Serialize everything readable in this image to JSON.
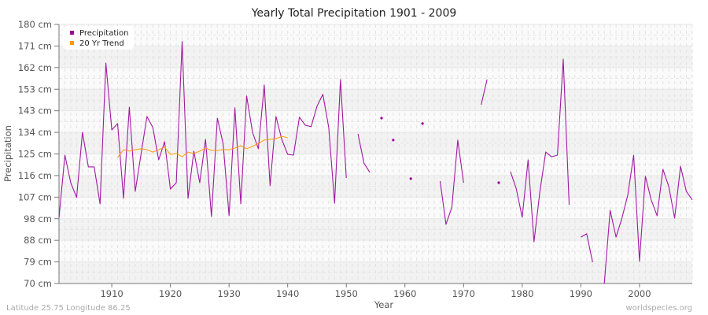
{
  "chart_data": {
    "type": "line",
    "title": "Yearly Total Precipitation 1901 - 2009",
    "xlabel": "Year",
    "ylabel": "Precipitation",
    "xlim": [
      1901,
      2009
    ],
    "ylim": [
      70,
      180
    ],
    "y_ticks": [
      "180 cm",
      "171 cm",
      "162 cm",
      "153 cm",
      "143 cm",
      "134 cm",
      "125 cm",
      "116 cm",
      "107 cm",
      "98 cm",
      "88 cm",
      "79 cm",
      "70 cm"
    ],
    "x_ticks": [
      "1910",
      "1920",
      "1930",
      "1940",
      "1950",
      "1960",
      "1970",
      "1980",
      "1990",
      "2000"
    ],
    "grid": true,
    "legend_position": "top-left",
    "series": [
      {
        "name": "Precipitation",
        "color": "#990099",
        "points": [
          [
            1901,
            98
          ],
          [
            1902,
            124.5
          ],
          [
            1903,
            112.8
          ],
          [
            1904,
            106.5
          ],
          [
            1905,
            134.2
          ],
          [
            1906,
            119.5
          ],
          [
            1907,
            119.5
          ],
          [
            1908,
            103.8
          ],
          [
            1909,
            163.6
          ],
          [
            1910,
            135.2
          ],
          [
            1911,
            137.9
          ],
          [
            1912,
            106.1
          ],
          [
            1913,
            144.9
          ],
          [
            1914,
            109.1
          ],
          [
            1915,
            125.2
          ],
          [
            1916,
            140.9
          ],
          [
            1917,
            136.2
          ],
          [
            1918,
            122.5
          ],
          [
            1919,
            130.2
          ],
          [
            1920,
            110.1
          ],
          [
            1921,
            112.8
          ],
          [
            1922,
            172.7
          ],
          [
            1923,
            106.1
          ],
          [
            1924,
            126.2
          ],
          [
            1925,
            112.8
          ],
          [
            1926,
            131.2
          ],
          [
            1927,
            98.4
          ],
          [
            1928,
            140.2
          ],
          [
            1929,
            129.2
          ],
          [
            1930,
            98.8
          ],
          [
            1931,
            144.6
          ],
          [
            1932,
            103.8
          ],
          [
            1933,
            149.6
          ],
          [
            1934,
            134.2
          ],
          [
            1935,
            127.2
          ],
          [
            1936,
            154.3
          ],
          [
            1937,
            111.5
          ],
          [
            1938,
            140.9
          ],
          [
            1939,
            131.2
          ],
          [
            1940,
            124.8
          ],
          [
            1941,
            124.5
          ],
          [
            1942,
            140.6
          ],
          [
            1943,
            137.2
          ],
          [
            1944,
            136.6
          ],
          [
            1945,
            145.3
          ],
          [
            1946,
            150.3
          ],
          [
            1947,
            136.2
          ],
          [
            1948,
            104.1
          ],
          [
            1949,
            156.6
          ],
          [
            1950,
            114.8
          ],
          [
            1951,
            null
          ],
          [
            1952,
            133.5
          ],
          [
            1953,
            121.2
          ],
          [
            1954,
            117.2
          ],
          [
            1955,
            null
          ],
          [
            1956,
            140.2
          ],
          [
            1957,
            null
          ],
          [
            1958,
            130.9
          ],
          [
            1959,
            null
          ],
          [
            1960,
            null
          ],
          [
            1961,
            114.5
          ],
          [
            1962,
            null
          ],
          [
            1963,
            137.9
          ],
          [
            1964,
            null
          ],
          [
            1965,
            null
          ],
          [
            1966,
            113.5
          ],
          [
            1967,
            95.1
          ],
          [
            1968,
            102.4
          ],
          [
            1969,
            130.9
          ],
          [
            1970,
            112.8
          ],
          [
            1971,
            null
          ],
          [
            1972,
            null
          ],
          [
            1973,
            145.9
          ],
          [
            1974,
            156.6
          ],
          [
            1975,
            null
          ],
          [
            1976,
            112.8
          ],
          [
            1977,
            null
          ],
          [
            1978,
            117.5
          ],
          [
            1979,
            110.1
          ],
          [
            1980,
            98.1
          ],
          [
            1981,
            122.5
          ],
          [
            1982,
            87.7
          ],
          [
            1983,
            108.8
          ],
          [
            1984,
            125.8
          ],
          [
            1985,
            123.8
          ],
          [
            1986,
            124.5
          ],
          [
            1987,
            165.3
          ],
          [
            1988,
            103.4
          ],
          [
            1989,
            null
          ],
          [
            1990,
            89.7
          ],
          [
            1991,
            91.1
          ],
          [
            1992,
            79.0
          ],
          [
            1993,
            null
          ],
          [
            1994,
            70.0
          ],
          [
            1995,
            101.1
          ],
          [
            1996,
            89.7
          ],
          [
            1997,
            97.8
          ],
          [
            1998,
            107.5
          ],
          [
            1999,
            124.5
          ],
          [
            2000,
            79.4
          ],
          [
            2001,
            115.5
          ],
          [
            2002,
            105.5
          ],
          [
            2003,
            98.8
          ],
          [
            2004,
            118.5
          ],
          [
            2005,
            111.1
          ],
          [
            2006,
            97.8
          ],
          [
            2007,
            119.8
          ],
          [
            2008,
            109.1
          ],
          [
            2009,
            105.5
          ]
        ]
      },
      {
        "name": "20 Yr Trend",
        "color": "#ff9900",
        "points": [
          [
            1911,
            123.5
          ],
          [
            1912,
            126.8
          ],
          [
            1913,
            126.2
          ],
          [
            1914,
            126.8
          ],
          [
            1915,
            127.2
          ],
          [
            1916,
            126.8
          ],
          [
            1917,
            125.8
          ],
          [
            1918,
            126.8
          ],
          [
            1919,
            127.9
          ],
          [
            1920,
            124.8
          ],
          [
            1921,
            125.2
          ],
          [
            1922,
            123.8
          ],
          [
            1923,
            125.8
          ],
          [
            1924,
            125.2
          ],
          [
            1925,
            126.2
          ],
          [
            1926,
            127.5
          ],
          [
            1927,
            126.5
          ],
          [
            1928,
            126.5
          ],
          [
            1929,
            126.8
          ],
          [
            1930,
            126.8
          ],
          [
            1931,
            127.5
          ],
          [
            1932,
            128.5
          ],
          [
            1933,
            127.2
          ],
          [
            1934,
            128.2
          ],
          [
            1935,
            129.5
          ],
          [
            1936,
            130.9
          ],
          [
            1937,
            131.2
          ],
          [
            1938,
            131.5
          ],
          [
            1939,
            132.5
          ],
          [
            1940,
            131.9
          ]
        ]
      }
    ]
  },
  "legend": {
    "items": [
      {
        "label": "Precipitation",
        "color": "#990099"
      },
      {
        "label": "20 Yr Trend",
        "color": "#ff9900"
      }
    ]
  },
  "footer": {
    "left": "Latitude 25.75 Longitude 86.25",
    "right": "worldspecies.org"
  }
}
